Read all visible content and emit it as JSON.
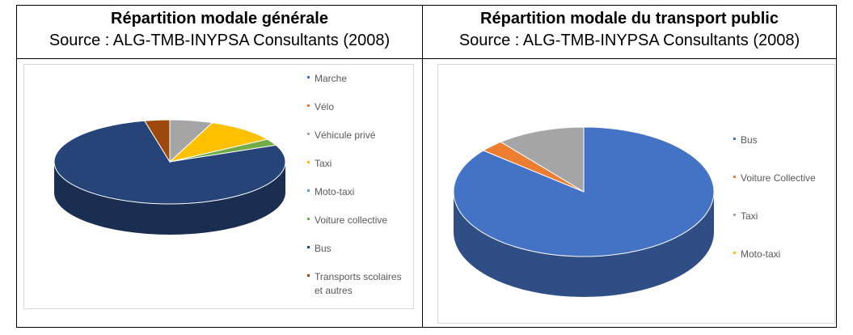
{
  "left": {
    "title": "Répartition modale générale",
    "source": "Source : ALG-TMB-INYPSA Consultants (2008)"
  },
  "right": {
    "title": "Répartition modale du transport public",
    "source": "Source : ALG-TMB-INYPSA Consultants (2008)"
  },
  "chart_data": [
    {
      "type": "pie",
      "title": "Répartition modale générale",
      "legend_position": "right",
      "series": [
        {
          "name": "Marche",
          "value": 0,
          "color": "#4472c4"
        },
        {
          "name": "Vélo",
          "value": 0,
          "color": "#ed7d31"
        },
        {
          "name": "Véhicule privé",
          "value": 6,
          "color": "#a5a5a5"
        },
        {
          "name": "Taxi",
          "value": 10,
          "color": "#ffc000"
        },
        {
          "name": "Moto-taxi",
          "value": 0,
          "color": "#5b9bd5"
        },
        {
          "name": "Voiture collective",
          "value": 2.5,
          "color": "#70ad47"
        },
        {
          "name": "Bus",
          "value": 78,
          "color": "#264478"
        },
        {
          "name": "Transports scolaires et autres",
          "value": 3.5,
          "color": "#9e480e"
        }
      ]
    },
    {
      "type": "pie",
      "title": "Répartition modale du transport public",
      "legend_position": "right",
      "series": [
        {
          "name": "Bus",
          "value": 86,
          "color": "#4472c4"
        },
        {
          "name": "Voiture Collective",
          "value": 3,
          "color": "#ed7d31"
        },
        {
          "name": "Taxi",
          "value": 11,
          "color": "#a5a5a5"
        },
        {
          "name": "Moto-taxi",
          "value": 0,
          "color": "#ffc000"
        }
      ]
    }
  ]
}
